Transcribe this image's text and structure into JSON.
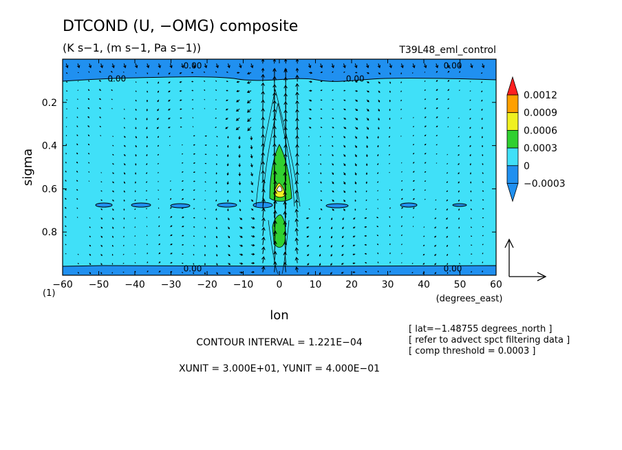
{
  "chart_data": {
    "type": "heatmap",
    "title": "DTCOND (U, −OMG) composite",
    "subtitle": "(K s−1, (m s−1, Pa s−1))",
    "run_label": "T39L48_eml_control",
    "xlabel": "lon",
    "xunit_label": "(degrees_east)",
    "ylabel": "sigma",
    "corner_label": "(1)",
    "xlim": [
      -60,
      60
    ],
    "ylim": [
      1.0,
      0.0
    ],
    "x_ticks": [
      "−60",
      "−50",
      "−40",
      "−30",
      "−20",
      "−10",
      "0",
      "10",
      "20",
      "30",
      "40",
      "50",
      "60"
    ],
    "y_ticks": [
      "0.2",
      "0.4",
      "0.6",
      "0.8"
    ],
    "y_tick_values": [
      0.2,
      0.4,
      0.6,
      0.8
    ],
    "x_tick_values": [
      -60,
      -50,
      -40,
      -30,
      -20,
      -10,
      0,
      10,
      20,
      30,
      40,
      50,
      60
    ],
    "contour_labels": [
      {
        "text": "0.00",
        "lon": -45,
        "sigma": 0.09
      },
      {
        "text": "0.00",
        "lon": -24,
        "sigma": 0.03
      },
      {
        "text": "0.00",
        "lon": 21,
        "sigma": 0.09
      },
      {
        "text": "0.00",
        "lon": 48,
        "sigma": 0.03
      },
      {
        "text": "0.00",
        "lon": -24,
        "sigma": 0.97
      },
      {
        "text": "0.00",
        "lon": 48,
        "sigma": 0.97
      }
    ],
    "colorbar": {
      "levels": [
        "0.0012",
        "0.0009",
        "0.0006",
        "0.0003",
        "0",
        "−0.0003"
      ],
      "colors": [
        "#ff2020",
        "#ffa000",
        "#f0f020",
        "#30d030",
        "#40e0f8",
        "#2090f0"
      ]
    },
    "series": [
      {
        "name": "",
        "kind": "filled-contour",
        "values_note": ""
      }
    ],
    "info_lines": [
      "[ lat=−1.48755 degrees_north ]",
      "[ refer to advect spct filtering data ]",
      "[ comp threshold = 0.0003 ]"
    ],
    "contour_interval": "CONTOUR INTERVAL = 1.221E−04",
    "units_line": "XUNIT = 3.000E+01, YUNIT = 4.000E−01",
    "colors": {
      "background_field": "#40e0f8",
      "negative_band": "#2090f0",
      "positive_low": "#30d030",
      "positive_mid": "#f0f020",
      "positive_high": "#ffa000",
      "max": "#ff2020"
    }
  }
}
